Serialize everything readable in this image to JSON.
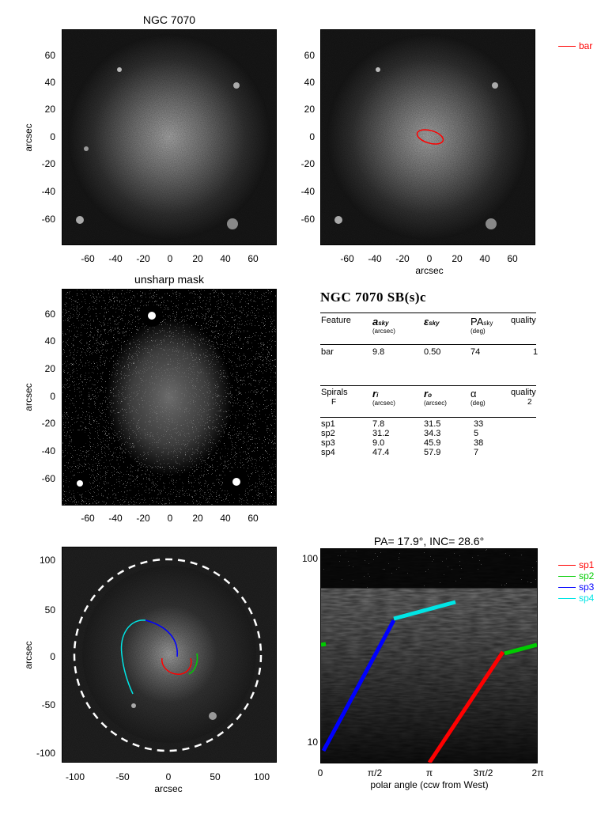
{
  "panels": {
    "top_left_title": "NGC 7070",
    "unsharp_title": "unsharp mask",
    "deproj_title": "PA=  17.9°, INC=  28.6°"
  },
  "axes": {
    "ylabel": "arcsec",
    "xlabel": "arcsec",
    "ticks_80": [
      "-60",
      "-40",
      "-20",
      "0",
      "20",
      "40",
      "60"
    ],
    "ticks_110": [
      "-100",
      "-50",
      "0",
      "50",
      "100"
    ],
    "polar_xlabel": "polar angle (ccw from West)",
    "polar_xticks": [
      "0",
      "π/2",
      "π",
      "3π/2",
      "2π"
    ],
    "polar_yticks": [
      "10",
      "100"
    ]
  },
  "legend_bar": {
    "label": "bar",
    "color": "#ff0000"
  },
  "legend_spirals": [
    {
      "label": "sp1",
      "color": "#ff0000"
    },
    {
      "label": "sp2",
      "color": "#00cc00"
    },
    {
      "label": "sp3",
      "color": "#0000ff"
    },
    {
      "label": "sp4",
      "color": "#00e5e5"
    }
  ],
  "table": {
    "heading": "NGC 7070  SB(s)c",
    "bar_header": {
      "feature": "Feature",
      "a_sky": "a",
      "a_sky_sub": "sky",
      "a_sky_unit": "(arcsec)",
      "eps_sky": "ε",
      "eps_sky_sub": "sky",
      "pa_sky": "PA",
      "pa_sky_sub": "sky",
      "pa_sky_unit": "(deg)",
      "quality": "quality"
    },
    "bar_row": {
      "feature": "bar",
      "a": "9.8",
      "eps": "0.50",
      "pa": "74",
      "quality": "1"
    },
    "spiral_header": {
      "spirals": "Spirals",
      "spirals_sub": "F",
      "ri": "r",
      "ri_sub": "i",
      "ri_unit": "(arcsec)",
      "ro": "r",
      "ro_sub": "o",
      "ro_unit": "(arcsec)",
      "alpha": "α",
      "alpha_unit": "(deg)",
      "quality": "quality",
      "quality_val": "2"
    },
    "spiral_rows": [
      {
        "name": "sp1",
        "ri": "7.8",
        "ro": "31.5",
        "alpha": "33"
      },
      {
        "name": "sp2",
        "ri": "31.2",
        "ro": "34.3",
        "alpha": "5"
      },
      {
        "name": "sp3",
        "ri": "9.0",
        "ro": "45.9",
        "alpha": "38"
      },
      {
        "name": "sp4",
        "ri": "47.4",
        "ro": "57.9",
        "alpha": "7"
      }
    ]
  },
  "colors": {
    "sp1": "#ff0000",
    "sp2": "#00cc00",
    "sp3": "#0000ff",
    "sp4": "#00e5e5"
  }
}
